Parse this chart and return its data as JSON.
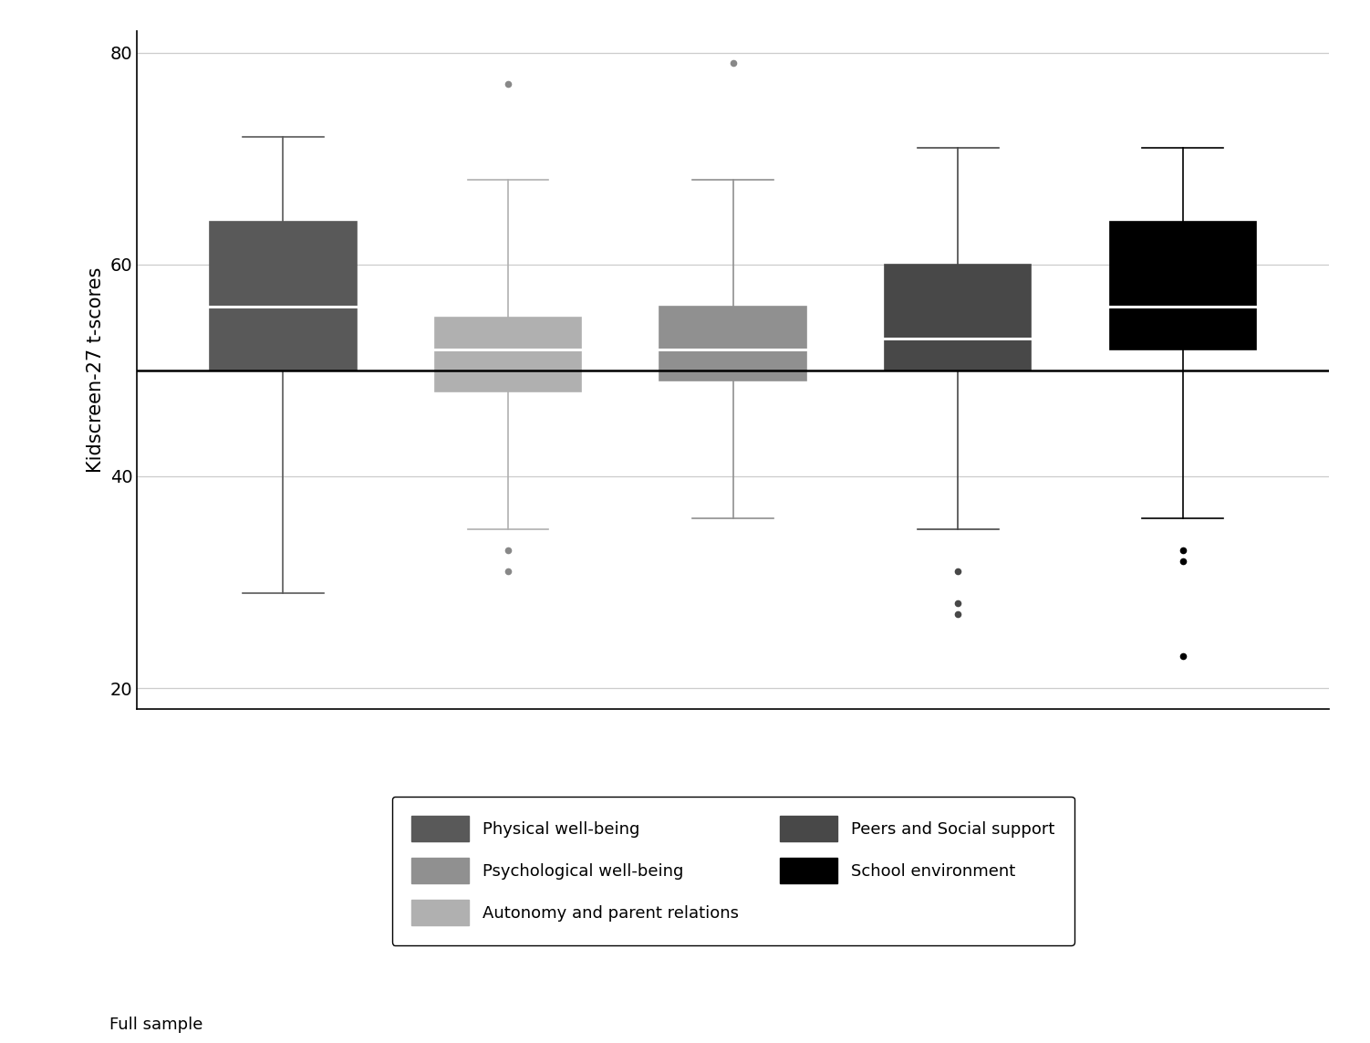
{
  "ylabel": "Kidscreen-27 t-scores",
  "xlabel": "Full sample",
  "ylim": [
    18,
    82
  ],
  "yticks": [
    20,
    40,
    60,
    80
  ],
  "reference_line": 50,
  "boxes": [
    {
      "label": "Physical well-being",
      "color": "#595959",
      "whisker_color": "#595959",
      "flier_color": "#888888",
      "q1": 50,
      "median": 56,
      "q3": 64,
      "whislo": 29,
      "whishi": 72,
      "fliers": []
    },
    {
      "label": "Autonomy and parent relations",
      "color": "#b0b0b0",
      "whisker_color": "#b0b0b0",
      "flier_color": "#888888",
      "q1": 48,
      "median": 52,
      "q3": 55,
      "whislo": 35,
      "whishi": 68,
      "fliers": [
        77,
        33,
        31
      ]
    },
    {
      "label": "Psychological well-being",
      "color": "#909090",
      "whisker_color": "#909090",
      "flier_color": "#888888",
      "q1": 49,
      "median": 52,
      "q3": 56,
      "whislo": 36,
      "whishi": 68,
      "fliers": [
        79
      ]
    },
    {
      "label": "Peers and Social support",
      "color": "#484848",
      "whisker_color": "#484848",
      "flier_color": "#484848",
      "q1": 50,
      "median": 53,
      "q3": 60,
      "whislo": 35,
      "whishi": 71,
      "fliers": [
        31,
        28,
        27
      ]
    },
    {
      "label": "School environment",
      "color": "#000000",
      "whisker_color": "#000000",
      "flier_color": "#000000",
      "q1": 52,
      "median": 56,
      "q3": 64,
      "whislo": 36,
      "whishi": 71,
      "fliers": [
        33,
        32,
        23
      ]
    }
  ],
  "legend_col1": [
    {
      "label": "Physical well-being",
      "color": "#595959"
    },
    {
      "label": "Autonomy and parent relations",
      "color": "#b0b0b0"
    },
    {
      "label": "School environment",
      "color": "#000000"
    }
  ],
  "legend_col2": [
    {
      "label": "Psychological well-being",
      "color": "#909090"
    },
    {
      "label": "Peers and Social support",
      "color": "#484848"
    }
  ],
  "background_color": "#ffffff",
  "grid_color": "#cccccc"
}
